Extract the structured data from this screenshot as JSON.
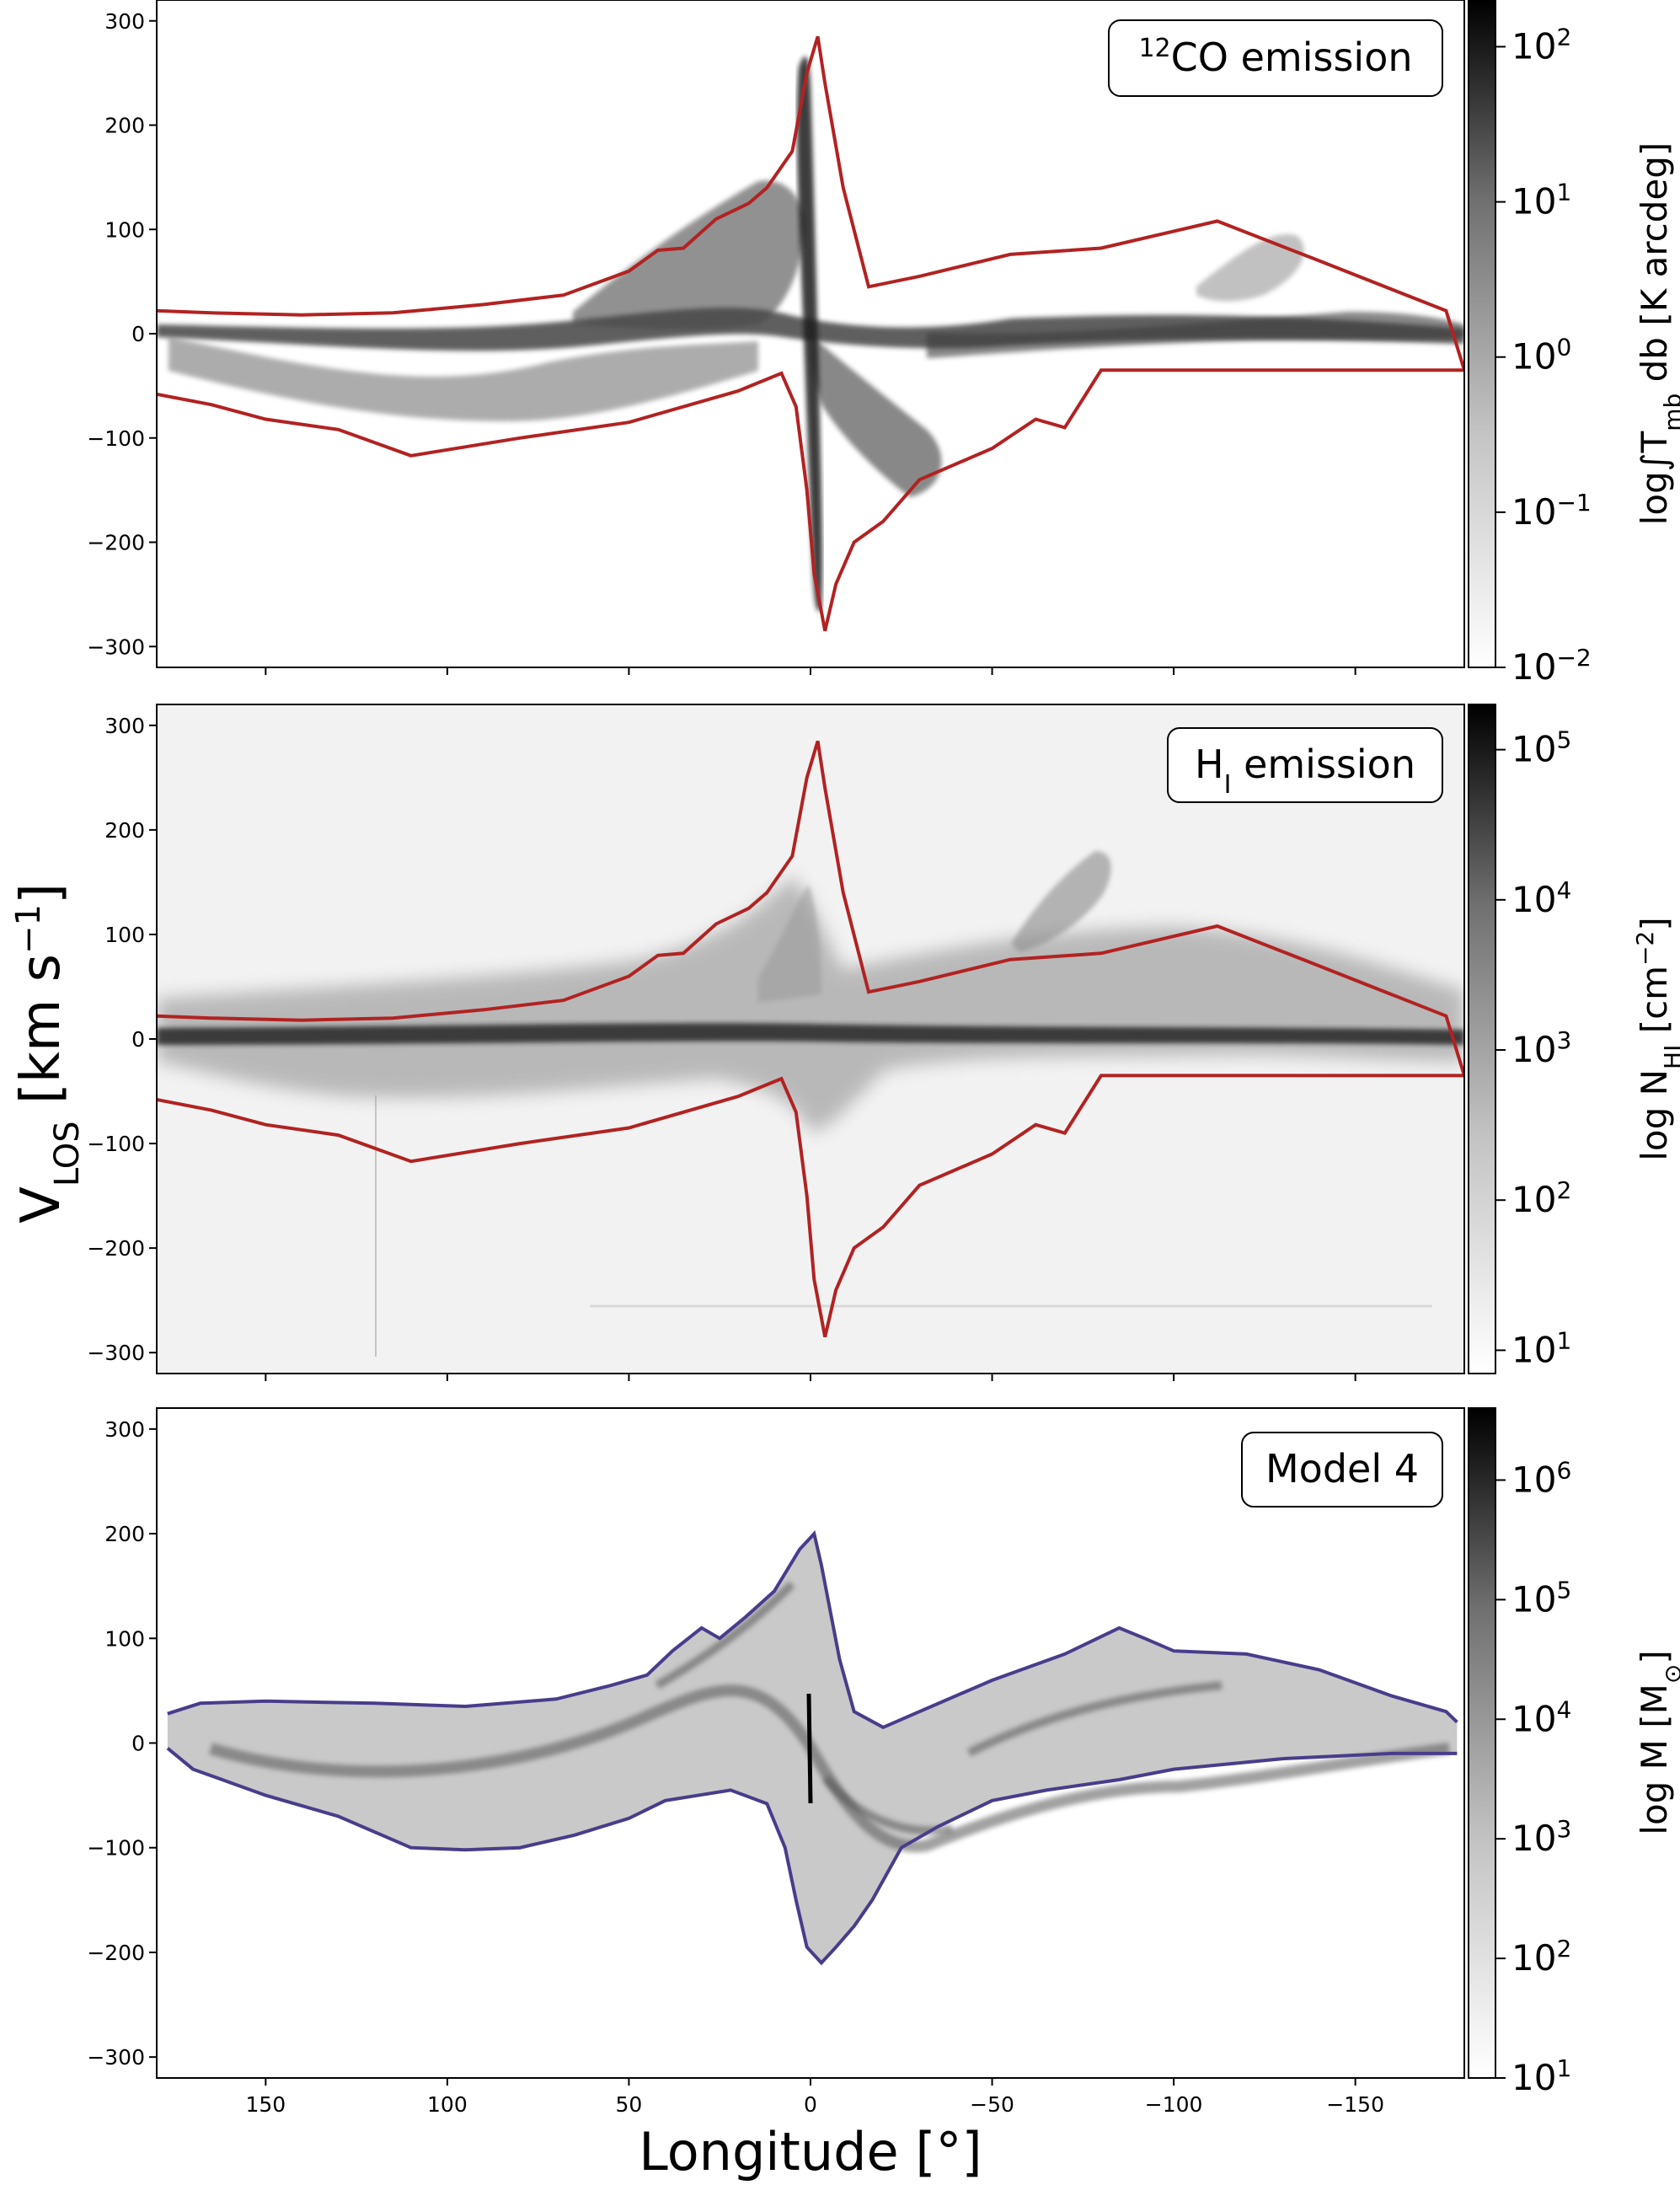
{
  "figure": {
    "ylabel_main": "V",
    "ylabel_sub": "LOS",
    "ylabel_unit": " [km s",
    "ylabel_exp": "−1",
    "ylabel_close": "]",
    "xlabel": "Longitude [°]"
  },
  "colors": {
    "envelope_obs": "#b22222",
    "envelope_model": "#483d8b",
    "ink": "#000000"
  },
  "chart_data": [
    {
      "type": "heatmap",
      "panel": "top",
      "title_sup": "12",
      "title": "CO emission",
      "xlim": [
        180,
        -180
      ],
      "ylim": [
        -320,
        320
      ],
      "xticks": [
        150,
        100,
        50,
        0,
        -50,
        -100,
        -150
      ],
      "xtick_labels": [
        "150",
        "100",
        "50",
        "0",
        "−50",
        "−100",
        "−150"
      ],
      "yticks": [
        300,
        200,
        100,
        0,
        -100,
        -200,
        -300
      ],
      "ytick_labels": [
        "300",
        "200",
        "100",
        "0",
        "−100",
        "−200",
        "−300"
      ],
      "show_xtick_labels": false,
      "colorbar": {
        "scale": "log",
        "range": [
          0.01,
          200
        ],
        "ticks": [
          0.01,
          0.1,
          1,
          10,
          100
        ],
        "tick_base": [
          "10",
          "10",
          "10",
          "10",
          "10"
        ],
        "tick_exp": [
          "−2",
          "−1",
          "0",
          "1",
          "2"
        ],
        "label_pre": "log∫T",
        "label_sub": "mb",
        "label_post": " db [K arcdeg]"
      },
      "envelope": {
        "upper": [
          [
            180,
            22
          ],
          [
            165,
            20
          ],
          [
            140,
            18
          ],
          [
            115,
            20
          ],
          [
            90,
            28
          ],
          [
            68,
            37
          ],
          [
            50,
            60
          ],
          [
            42,
            80
          ],
          [
            35,
            82
          ],
          [
            26,
            110
          ],
          [
            17,
            125
          ],
          [
            12,
            140
          ],
          [
            5,
            175
          ],
          [
            1,
            250
          ],
          [
            -2,
            285
          ],
          [
            -4,
            240
          ],
          [
            -9,
            140
          ],
          [
            -16,
            45
          ],
          [
            -30,
            55
          ],
          [
            -55,
            76
          ],
          [
            -80,
            82
          ],
          [
            -112,
            108
          ],
          [
            -140,
            70
          ],
          [
            -175,
            22
          ],
          [
            -180,
            -35
          ]
        ],
        "lower": [
          [
            180,
            -58
          ],
          [
            165,
            -68
          ],
          [
            150,
            -82
          ],
          [
            130,
            -92
          ],
          [
            110,
            -117
          ],
          [
            80,
            -100
          ],
          [
            50,
            -85
          ],
          [
            20,
            -55
          ],
          [
            8,
            -38
          ],
          [
            4,
            -70
          ],
          [
            1,
            -150
          ],
          [
            -1,
            -230
          ],
          [
            -4,
            -285
          ],
          [
            -7,
            -240
          ],
          [
            -12,
            -200
          ],
          [
            -20,
            -180
          ],
          [
            -30,
            -140
          ],
          [
            -50,
            -110
          ],
          [
            -62,
            -82
          ],
          [
            -70,
            -90
          ],
          [
            -80,
            -35
          ],
          [
            -140,
            -35
          ],
          [
            -180,
            -35
          ]
        ]
      }
    },
    {
      "type": "heatmap",
      "panel": "middle",
      "title_main": "H",
      "title_sub": "I",
      "title": " emission",
      "xlim": [
        180,
        -180
      ],
      "ylim": [
        -320,
        320
      ],
      "xticks": [
        150,
        100,
        50,
        0,
        -50,
        -100,
        -150
      ],
      "xtick_labels": [
        "150",
        "100",
        "50",
        "0",
        "−50",
        "−100",
        "−150"
      ],
      "yticks": [
        300,
        200,
        100,
        0,
        -100,
        -200,
        -300
      ],
      "ytick_labels": [
        "300",
        "200",
        "100",
        "0",
        "−100",
        "−200",
        "−300"
      ],
      "show_xtick_labels": false,
      "colorbar": {
        "scale": "log",
        "range": [
          7,
          200000
        ],
        "ticks": [
          10,
          100,
          1000,
          10000,
          100000
        ],
        "tick_base": [
          "10",
          "10",
          "10",
          "10",
          "10"
        ],
        "tick_exp": [
          "1",
          "2",
          "3",
          "4",
          "5"
        ],
        "label_pre": "log N",
        "label_sub": "HI",
        "label_post": " [cm",
        "label_exp": "−2",
        "label_close": "]"
      },
      "envelope": {
        "upper": [
          [
            180,
            22
          ],
          [
            165,
            20
          ],
          [
            140,
            18
          ],
          [
            115,
            20
          ],
          [
            90,
            28
          ],
          [
            68,
            37
          ],
          [
            50,
            60
          ],
          [
            42,
            80
          ],
          [
            35,
            82
          ],
          [
            26,
            110
          ],
          [
            17,
            125
          ],
          [
            12,
            140
          ],
          [
            5,
            175
          ],
          [
            1,
            250
          ],
          [
            -2,
            285
          ],
          [
            -4,
            240
          ],
          [
            -9,
            140
          ],
          [
            -16,
            45
          ],
          [
            -30,
            55
          ],
          [
            -55,
            76
          ],
          [
            -80,
            82
          ],
          [
            -112,
            108
          ],
          [
            -140,
            70
          ],
          [
            -175,
            22
          ],
          [
            -180,
            -35
          ]
        ],
        "lower": [
          [
            180,
            -58
          ],
          [
            165,
            -68
          ],
          [
            150,
            -82
          ],
          [
            130,
            -92
          ],
          [
            110,
            -117
          ],
          [
            80,
            -100
          ],
          [
            50,
            -85
          ],
          [
            20,
            -55
          ],
          [
            8,
            -38
          ],
          [
            4,
            -70
          ],
          [
            1,
            -150
          ],
          [
            -1,
            -230
          ],
          [
            -4,
            -285
          ],
          [
            -7,
            -240
          ],
          [
            -12,
            -200
          ],
          [
            -20,
            -180
          ],
          [
            -30,
            -140
          ],
          [
            -50,
            -110
          ],
          [
            -62,
            -82
          ],
          [
            -70,
            -90
          ],
          [
            -80,
            -35
          ],
          [
            -140,
            -35
          ],
          [
            -180,
            -35
          ]
        ]
      }
    },
    {
      "type": "heatmap",
      "panel": "bottom",
      "title": "Model 4",
      "xlim": [
        180,
        -180
      ],
      "ylim": [
        -320,
        320
      ],
      "xticks": [
        150,
        100,
        50,
        0,
        -50,
        -100,
        -150
      ],
      "xtick_labels": [
        "150",
        "100",
        "50",
        "0",
        "−50",
        "−100",
        "−150"
      ],
      "yticks": [
        300,
        200,
        100,
        0,
        -100,
        -200,
        -300
      ],
      "ytick_labels": [
        "300",
        "200",
        "100",
        "0",
        "−100",
        "−200",
        "−300"
      ],
      "show_xtick_labels": true,
      "colorbar": {
        "scale": "log",
        "range": [
          10,
          4000000
        ],
        "ticks": [
          10,
          100,
          1000,
          10000,
          100000,
          1000000
        ],
        "tick_base": [
          "10",
          "10",
          "10",
          "10",
          "10",
          "10"
        ],
        "tick_exp": [
          "1",
          "2",
          "3",
          "4",
          "5",
          "6"
        ],
        "label_pre": "log M [M",
        "label_sub": "⊙",
        "label_post": "]"
      },
      "envelope": {
        "upper": [
          [
            177,
            28
          ],
          [
            168,
            38
          ],
          [
            150,
            40
          ],
          [
            120,
            38
          ],
          [
            95,
            35
          ],
          [
            70,
            42
          ],
          [
            55,
            55
          ],
          [
            45,
            65
          ],
          [
            38,
            88
          ],
          [
            30,
            110
          ],
          [
            25,
            100
          ],
          [
            18,
            120
          ],
          [
            10,
            145
          ],
          [
            3,
            185
          ],
          [
            -1,
            200
          ],
          [
            -3,
            170
          ],
          [
            -8,
            80
          ],
          [
            -12,
            30
          ],
          [
            -20,
            15
          ],
          [
            -30,
            30
          ],
          [
            -50,
            60
          ],
          [
            -70,
            85
          ],
          [
            -85,
            110
          ],
          [
            -92,
            100
          ],
          [
            -100,
            88
          ],
          [
            -120,
            85
          ],
          [
            -140,
            70
          ],
          [
            -160,
            45
          ],
          [
            -175,
            30
          ],
          [
            -178,
            20
          ]
        ],
        "lower": [
          [
            177,
            -5
          ],
          [
            170,
            -25
          ],
          [
            150,
            -50
          ],
          [
            130,
            -70
          ],
          [
            110,
            -100
          ],
          [
            95,
            -102
          ],
          [
            80,
            -100
          ],
          [
            65,
            -88
          ],
          [
            50,
            -72
          ],
          [
            40,
            -55
          ],
          [
            22,
            -45
          ],
          [
            12,
            -58
          ],
          [
            7,
            -100
          ],
          [
            4,
            -150
          ],
          [
            1,
            -195
          ],
          [
            -3,
            -210
          ],
          [
            -7,
            -195
          ],
          [
            -12,
            -175
          ],
          [
            -17,
            -150
          ],
          [
            -25,
            -100
          ],
          [
            -35,
            -80
          ],
          [
            -50,
            -55
          ],
          [
            -65,
            -45
          ],
          [
            -85,
            -35
          ],
          [
            -100,
            -25
          ],
          [
            -130,
            -15
          ],
          [
            -160,
            -10
          ],
          [
            -178,
            -10
          ]
        ]
      }
    }
  ]
}
